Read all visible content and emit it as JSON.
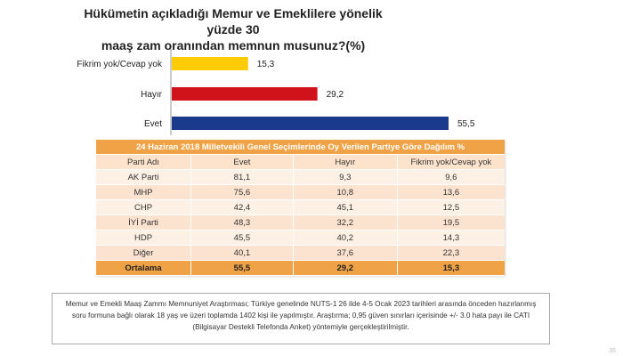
{
  "title_line1": "Hükümetin açıkladığı Memur ve Emeklilere yönelik yüzde 30",
  "title_line2": "maaş zam oranından memnun musunuz?(%)",
  "chart_data": {
    "type": "bar",
    "orientation": "horizontal",
    "categories": [
      "Fikrim yok/Cevap yok",
      "Hayır",
      "Evet"
    ],
    "values": [
      15.3,
      29.2,
      55.5
    ],
    "colors": [
      "#ffcb05",
      "#d0121b",
      "#1b3a8c"
    ],
    "xlim": [
      0,
      55.5
    ],
    "grid": false
  },
  "table": {
    "caption": "24 Haziran 2018 Milletvekili Genel Seçimlerinde Oy Verilen Partiye Göre Dağılım %",
    "headers": [
      "Parti Adı",
      "Evet",
      "Hayır",
      "Fikrim yok/Cevap yok"
    ],
    "rows": [
      [
        "AK Parti",
        "81,1",
        "9,3",
        "9,6"
      ],
      [
        "MHP",
        "75,6",
        "10,8",
        "13,6"
      ],
      [
        "CHP",
        "42,4",
        "45,1",
        "12,5"
      ],
      [
        "İYİ Parti",
        "48,3",
        "32,2",
        "19,5"
      ],
      [
        "HDP",
        "45,5",
        "40,2",
        "14,3"
      ],
      [
        "Diğer",
        "40,1",
        "37,6",
        "22,3"
      ]
    ],
    "footer": [
      "Ortalama",
      "55,5",
      "29,2",
      "15,3"
    ],
    "header_color": "#f0a346",
    "footer_color": "#f0a346"
  },
  "footnote": "Memur ve Emekli Maaş Zammı Memnuniyet Araştırması; Türkiye genelinde NUTS-1 26 ilde 4-5 Ocak 2023 tarihleri arasında önceden hazırlanmış soru formuna bağlı olarak 18 yaş ve üzeri toplamda 1402 kişi ile yapılmıştır. Araştırma; 0,95 güven sınırları içerisinde +/- 3.0 hata payı ile CATI (Bilgisayar Destekli Telefonda Anket) yöntemiyle gerçekleştirilmiştir.",
  "page_number": "35"
}
